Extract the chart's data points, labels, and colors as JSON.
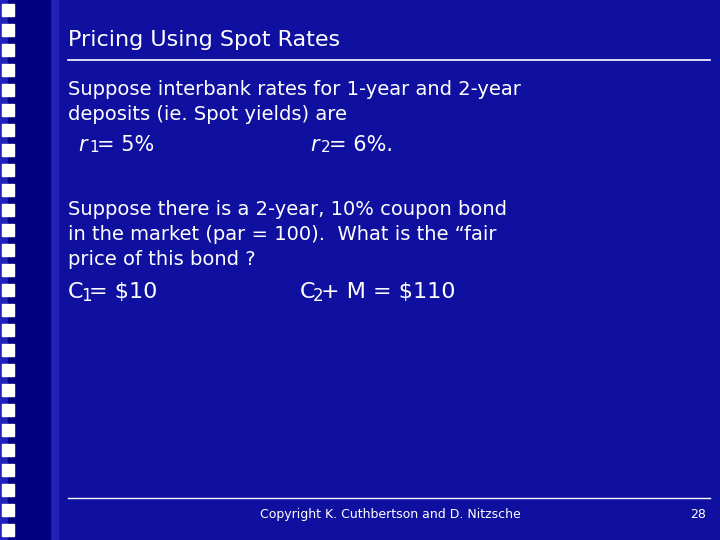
{
  "title": "Pricing Using Spot Rates",
  "bg_color": "#1010a0",
  "left_stripe_color": "#2222bb",
  "left_stripe_dark": "#000080",
  "title_color": "#ffffff",
  "text_color": "#ffffff",
  "footer_text": "Copyright K. Cuthbertson and D. Nitzsche",
  "page_number": "28",
  "title_fontsize": 16,
  "body_fontsize": 14,
  "eq_fontsize": 15,
  "footer_fontsize": 9,
  "line1": "Suppose interbank rates for 1-year and 2-year",
  "line2": "deposits (ie. Spot yields) are",
  "r1_val": " = 5%",
  "r2_val": " = 6%.",
  "line3": "Suppose there is a 2-year, 10% coupon bond",
  "line4": "in the market (par = 100).  What is the “fair",
  "line5": "price of this bond ?",
  "c1_val": " = $10",
  "c2_val": " + M = $110"
}
